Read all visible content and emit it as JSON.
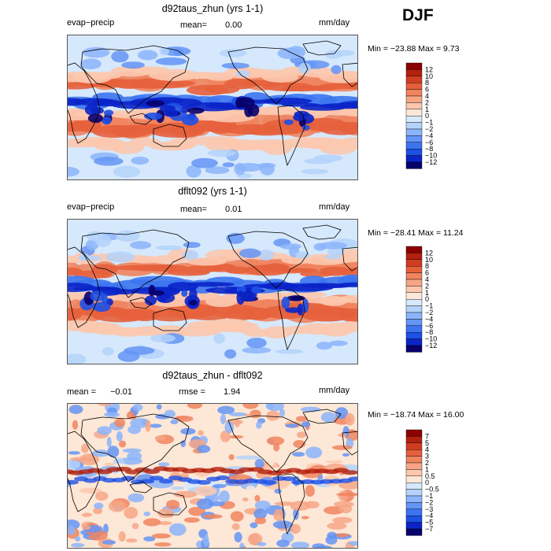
{
  "season": "DJF",
  "units": "mm/day",
  "colors": {
    "diverging": [
      "#08006b",
      "#0a24c8",
      "#1e50e6",
      "#3c74f0",
      "#6494f5",
      "#8cb4fa",
      "#b4d2fa",
      "#d6e8fc",
      "#fde7d6",
      "#fcc8ae",
      "#f6a686",
      "#f0845f",
      "#e6603c",
      "#d23c22",
      "#b4200e",
      "#8c0000"
    ],
    "land_outline": "#000000",
    "panel_border": "#555555"
  },
  "panels": [
    {
      "title": "d92taus_zhun (yrs 1-1)",
      "variable": "evap−precip",
      "mean_label": "mean=",
      "mean_value": "0.00",
      "units": "mm/day",
      "min_max": "Min = −23.88 Max =    9.73",
      "ticks": [
        "12",
        "10",
        "8",
        "6",
        "4",
        "2",
        "1",
        "0",
        "−1",
        "−2",
        "−4",
        "−6",
        "−8",
        "−10",
        "−12"
      ]
    },
    {
      "title": "dflt092 (yrs 1-1)",
      "variable": "evap−precip",
      "mean_label": "mean=",
      "mean_value": "0.01",
      "units": "mm/day",
      "min_max": "Min = −28.41 Max =  11.24",
      "ticks": [
        "12",
        "10",
        "8",
        "6",
        "4",
        "2",
        "1",
        "0",
        "−1",
        "−2",
        "−4",
        "−6",
        "−8",
        "−10",
        "−12"
      ]
    },
    {
      "title": "d92taus_zhun - dflt092",
      "mean_label": "mean =",
      "mean_value": "−0.01",
      "rmse_label": "rmse =",
      "rmse_value": "1.94",
      "units": "mm/day",
      "min_max": "Min = −18.74 Max =  16.00",
      "ticks": [
        "7",
        "5",
        "4",
        "3",
        "2",
        "1",
        "0.5",
        "0",
        "−0.5",
        "−1",
        "−2",
        "−3",
        "−4",
        "−5",
        "−7"
      ]
    }
  ],
  "chart_data": [
    {
      "type": "heatmap",
      "title": "d92taus_zhun (yrs 1-1)",
      "field": "evap−precip",
      "units": "mm/day",
      "mean": 0.0,
      "min": -23.88,
      "max": 9.73,
      "contour_levels": [
        -12,
        -10,
        -8,
        -6,
        -4,
        -2,
        -1,
        0,
        1,
        2,
        4,
        6,
        8,
        10,
        12
      ]
    },
    {
      "type": "heatmap",
      "title": "dflt092 (yrs 1-1)",
      "field": "evap−precip",
      "units": "mm/day",
      "mean": 0.01,
      "min": -28.41,
      "max": 11.24,
      "contour_levels": [
        -12,
        -10,
        -8,
        -6,
        -4,
        -2,
        -1,
        0,
        1,
        2,
        4,
        6,
        8,
        10,
        12
      ]
    },
    {
      "type": "heatmap",
      "title": "d92taus_zhun - dflt092",
      "units": "mm/day",
      "mean": -0.01,
      "rmse": 1.94,
      "min": -18.74,
      "max": 16.0,
      "contour_levels": [
        -7,
        -5,
        -4,
        -3,
        -2,
        -1,
        -0.5,
        0,
        0.5,
        1,
        2,
        3,
        4,
        5,
        7
      ]
    }
  ]
}
